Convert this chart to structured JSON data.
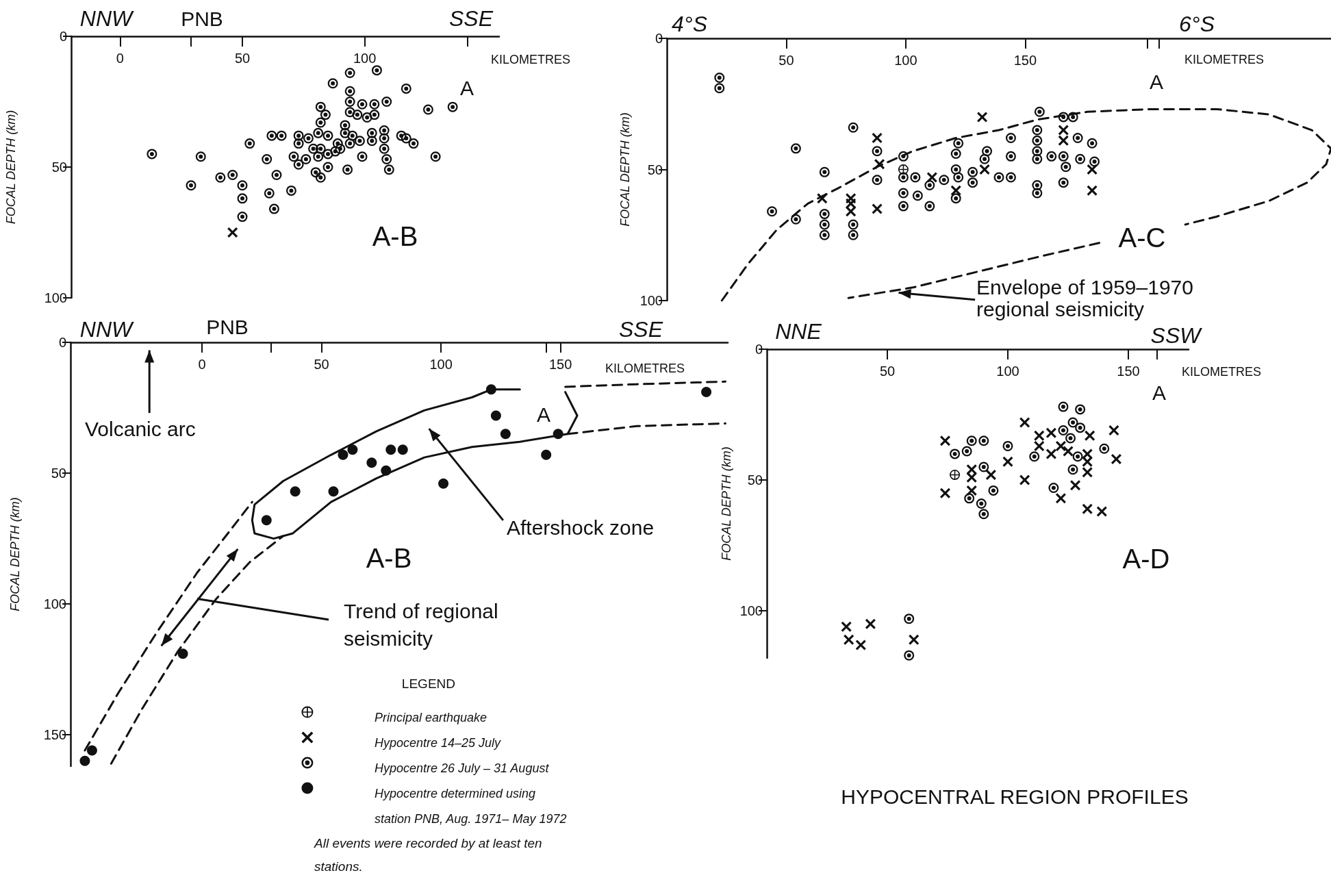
{
  "chart_data": [
    {
      "type": "scatter",
      "xlabel": "KILOMETRES",
      "ylabel": "FOCAL DEPTH (km)",
      "xlim": [
        -20,
        155
      ],
      "ylim": [
        100,
        0
      ],
      "xticks": [
        0,
        {
          "value": 29,
          "label": null
        },
        50,
        100,
        {
          "value": 142,
          "label": null
        }
      ],
      "yticks": [
        0,
        50,
        100
      ],
      "annotations": [
        "NNW",
        "PNB",
        "SSE",
        "A",
        "A-B"
      ],
      "series": [
        {
          "marker": "circle-dot",
          "color": "#111111",
          "x": [
            13,
            33,
            29,
            41,
            46,
            50,
            50,
            50,
            53,
            60,
            62,
            66,
            64,
            61,
            63,
            70,
            73,
            73,
            71,
            73,
            76,
            77,
            79,
            81,
            81,
            82,
            84,
            82,
            82,
            85,
            85,
            80,
            82,
            87,
            85,
            88,
            89,
            92,
            92,
            90,
            93,
            94,
            94,
            94,
            94,
            95,
            94,
            97,
            99,
            101,
            98,
            99,
            104,
            104,
            105,
            109,
            103,
            103,
            108,
            108,
            108,
            109,
            110,
            117,
            115,
            117,
            120,
            126,
            129,
            136
          ],
          "values": [
            45,
            46,
            57,
            54,
            53,
            57,
            62,
            69,
            41,
            47,
            38,
            38,
            53,
            60,
            66,
            59,
            38,
            41,
            46,
            49,
            47,
            39,
            43,
            37,
            46,
            27,
            30,
            33,
            43,
            38,
            50,
            52,
            54,
            18,
            45,
            44,
            41,
            34,
            37,
            43,
            51,
            14,
            21,
            25,
            29,
            38,
            41,
            30,
            26,
            31,
            40,
            46,
            26,
            30,
            13,
            25,
            37,
            40,
            36,
            39,
            43,
            47,
            51,
            20,
            38,
            39,
            41,
            28,
            46,
            27
          ]
        },
        {
          "marker": "cross",
          "color": "#111111",
          "x": [
            46
          ],
          "values": [
            75
          ]
        }
      ]
    },
    {
      "type": "scatter",
      "xlabel": "KILOMETRES",
      "ylabel": "FOCAL DEPTH (km)",
      "xlim": [
        0,
        278
      ],
      "ylim": [
        100,
        0
      ],
      "xticks": [
        50,
        100,
        150,
        {
          "value": 201,
          "label": null
        },
        {
          "value": 206,
          "label": null
        }
      ],
      "yticks": [
        0,
        50,
        100
      ],
      "annotations": [
        "4°S",
        "6°S",
        "A",
        "A-C",
        "Envelope of 1959–1970 regional seismicity"
      ],
      "series": [
        {
          "type": "line",
          "line_style": "dashed",
          "color": "#111111",
          "x": [
            23,
            34,
            46,
            59,
            72,
            88,
            103,
            121,
            139,
            155,
            176,
            203,
            230,
            252,
            270,
            278,
            276,
            268,
            252,
            230,
            217
          ],
          "values": [
            100,
            86,
            73,
            63,
            57,
            49,
            43,
            38,
            35,
            31,
            28,
            27,
            27,
            29,
            35,
            42,
            48,
            55,
            62,
            68,
            71
          ]
        },
        {
          "type": "line",
          "line_style": "dashed",
          "color": "#111111",
          "x": [
            181,
            157,
            130,
            103,
            76
          ],
          "values": [
            78,
            83,
            89,
            95,
            99
          ]
        },
        {
          "marker": "circle-dot",
          "color": "#111111",
          "x": [
            22,
            22,
            78,
            54,
            66,
            44,
            54,
            66,
            66,
            66,
            78,
            78,
            88,
            88,
            99,
            99,
            99,
            99,
            104,
            105,
            110,
            110,
            116,
            122,
            121,
            121,
            122,
            121,
            128,
            128,
            134,
            133,
            139,
            144,
            144,
            144,
            156,
            155,
            155,
            155,
            155,
            155,
            155,
            161,
            166,
            170,
            166,
            167,
            166,
            172,
            173,
            178,
            179
          ],
          "values": [
            15,
            19,
            34,
            42,
            51,
            66,
            69,
            67,
            71,
            75,
            71,
            75,
            43,
            54,
            45,
            53,
            59,
            64,
            53,
            60,
            56,
            64,
            54,
            40,
            44,
            50,
            53,
            61,
            51,
            55,
            43,
            46,
            53,
            53,
            38,
            45,
            28,
            35,
            39,
            43,
            46,
            56,
            59,
            45,
            30,
            30,
            45,
            49,
            55,
            38,
            46,
            40,
            47
          ]
        },
        {
          "marker": "cross",
          "color": "#111111",
          "x": [
            65,
            77,
            77,
            77,
            88,
            88,
            89,
            111,
            121,
            132,
            133,
            166,
            166,
            178,
            178
          ],
          "values": [
            61,
            61,
            63,
            66,
            65,
            38,
            48,
            53,
            58,
            30,
            50,
            35,
            39,
            50,
            58
          ]
        },
        {
          "marker": "circle-plus",
          "color": "#111111",
          "x": [
            99
          ],
          "values": [
            50
          ]
        }
      ]
    },
    {
      "type": "scatter",
      "xlabel": "KILOMETRES",
      "ylabel": "FOCAL DEPTH (km)",
      "xlim": [
        -55,
        220
      ],
      "ylim": [
        162,
        0
      ],
      "xticks": [
        0,
        {
          "value": 29,
          "label": null
        },
        50,
        100,
        {
          "value": 144,
          "label": null
        },
        150
      ],
      "yticks": [
        0,
        50,
        100,
        150
      ],
      "annotations": [
        "NNW",
        "PNB",
        "SSE",
        "A",
        "Volcanic arc",
        "Aftershock zone",
        "A-B",
        "Trend of regional seismicity",
        "All events were recorded by at least ten stations."
      ],
      "legend": "bottom right",
      "legend_title": "LEGEND",
      "series": [
        {
          "type": "line",
          "line_style": "solid",
          "color": "#111111",
          "x": [
            152,
            157,
            153,
            133,
            113,
            93,
            73,
            54,
            38,
            30,
            22,
            21,
            22,
            34,
            54,
            73,
            93,
            113,
            121,
            133
          ],
          "values": [
            19,
            28,
            35,
            38,
            40,
            44,
            52,
            61,
            73,
            75,
            73,
            68,
            62,
            53,
            43,
            34,
            26,
            21,
            18,
            18
          ]
        },
        {
          "type": "line",
          "line_style": "dashed",
          "color": "#111111",
          "x": [
            -49,
            -35,
            -19,
            -2,
            10,
            21
          ],
          "values": [
            156,
            134,
            111,
            88,
            74,
            61
          ]
        },
        {
          "type": "line",
          "line_style": "dashed",
          "color": "#111111",
          "x": [
            -38,
            -25,
            -10,
            6,
            20,
            34
          ],
          "values": [
            161,
            140,
            118,
            98,
            84,
            74
          ]
        },
        {
          "type": "line",
          "line_style": "dashed",
          "color": "#111111",
          "x": [
            152,
            182,
            219
          ],
          "values": [
            17,
            16,
            15
          ]
        },
        {
          "type": "line",
          "line_style": "dashed",
          "color": "#111111",
          "x": [
            153,
            182,
            219
          ],
          "values": [
            35,
            32,
            31
          ]
        },
        {
          "name": "Principal earthquake",
          "marker": "circle-plus",
          "color": "#111111"
        },
        {
          "name": "Hypocentre 14–25 July",
          "marker": "cross",
          "color": "#111111"
        },
        {
          "name": "Hypocentre 26 July – 31 August",
          "marker": "circle-dot",
          "color": "#111111"
        },
        {
          "name": "Hypocentre determined using station PNB, Aug. 1971– May 1972",
          "marker": "circle",
          "color": "#111111",
          "x": [
            121,
            123,
            127,
            149,
            144,
            211,
            59,
            63,
            71,
            77,
            79,
            84,
            39,
            55,
            101,
            27,
            -8,
            -46,
            -49
          ],
          "values": [
            18,
            28,
            35,
            35,
            43,
            19,
            43,
            41,
            46,
            49,
            41,
            41,
            57,
            57,
            54,
            68,
            119,
            156,
            160
          ]
        }
      ]
    },
    {
      "type": "scatter",
      "xlabel": "KILOMETRES",
      "ylabel": "FOCAL DEPTH (km)",
      "xlim": [
        0,
        175
      ],
      "ylim": [
        118,
        0
      ],
      "xticks": [
        50,
        100,
        150,
        {
          "value": 162,
          "label": null
        }
      ],
      "yticks": [
        0,
        50,
        100
      ],
      "annotations": [
        "NNE",
        "SSW",
        "A",
        "A-D",
        "HYPOCENTRAL REGION PROFILES"
      ],
      "series": [
        {
          "marker": "circle-dot",
          "color": "#111111",
          "x": [
            123,
            130,
            127,
            130,
            123,
            126,
            140,
            129,
            111,
            127,
            119,
            100,
            90,
            85,
            83,
            78,
            90,
            94,
            84,
            89,
            90,
            59,
            59
          ],
          "values": [
            22,
            23,
            28,
            30,
            31,
            34,
            38,
            41,
            41,
            46,
            53,
            37,
            35,
            35,
            39,
            40,
            45,
            54,
            57,
            59,
            63,
            103,
            117
          ]
        },
        {
          "marker": "cross",
          "color": "#111111",
          "x": [
            74,
            74,
            85,
            85,
            85,
            93,
            100,
            107,
            107,
            113,
            113,
            118,
            118,
            122,
            125,
            122,
            128,
            134,
            133,
            133,
            133,
            133,
            139,
            144,
            145,
            33,
            34,
            39,
            43,
            61
          ],
          "values": [
            35,
            55,
            46,
            49,
            54,
            48,
            43,
            28,
            50,
            33,
            37,
            32,
            40,
            37,
            39,
            57,
            52,
            33,
            40,
            43,
            47,
            61,
            62,
            31,
            42,
            106,
            111,
            113,
            105,
            111
          ]
        },
        {
          "marker": "circle-plus",
          "color": "#111111",
          "x": [
            78
          ],
          "values": [
            48
          ]
        }
      ]
    }
  ]
}
